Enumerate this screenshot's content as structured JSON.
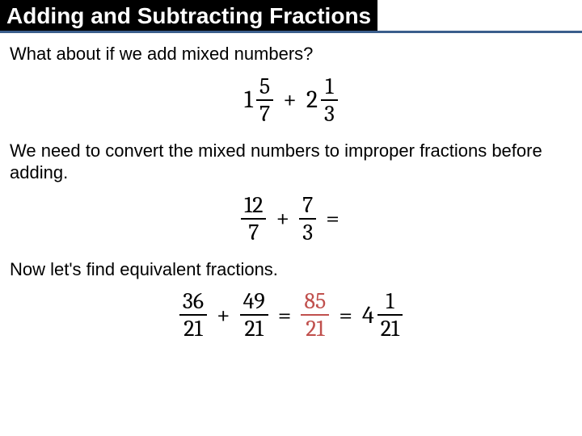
{
  "colors": {
    "title_bg": "#000000",
    "title_fg": "#ffffff",
    "underline": "#3b5e8c",
    "body_text": "#000000",
    "accent": "#c0504d",
    "page_bg": "#ffffff"
  },
  "typography": {
    "title_fontsize": 28,
    "body_fontsize": 22,
    "math_fontsize": 30,
    "frac_fontsize": 28,
    "title_weight": "bold",
    "body_family": "Trebuchet MS",
    "math_family": "Cambria"
  },
  "title": "Adding and Subtracting Fractions",
  "para1": "What about if we add mixed numbers?",
  "para2": "We need to convert the mixed numbers to improper fractions before adding.",
  "para3": "Now let's find equivalent fractions.",
  "eq1": {
    "left": {
      "whole": "1",
      "num": "5",
      "den": "7"
    },
    "op": "+",
    "right": {
      "whole": "2",
      "num": "1",
      "den": "3"
    }
  },
  "eq2": {
    "left": {
      "num": "12",
      "den": "7"
    },
    "op": "+",
    "right": {
      "num": "7",
      "den": "3"
    },
    "tail": "="
  },
  "eq3": {
    "a": {
      "num": "36",
      "den": "21"
    },
    "op1": "+",
    "b": {
      "num": "49",
      "den": "21"
    },
    "op2": "=",
    "c": {
      "num": "85",
      "den": "21"
    },
    "op3": "=",
    "d": {
      "whole": "4",
      "num": "1",
      "den": "21"
    }
  }
}
